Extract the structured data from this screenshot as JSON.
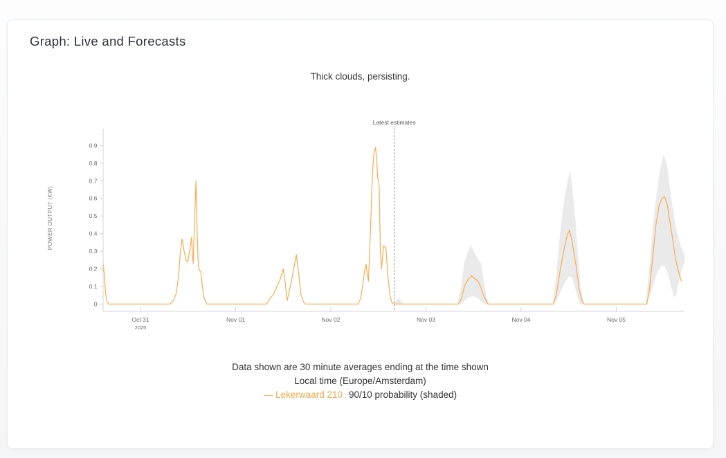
{
  "card": {
    "title": "Graph: Live and Forecasts"
  },
  "chart": {
    "subtitle": "Thick clouds, persisting."
  },
  "footer": {
    "line1": "Data shown are 30 minute averages ending at the time shown",
    "line2": "Local time (Europe/Amsterdam)",
    "legend_series_label": "— Lekerwaard 210",
    "legend_band_label": "90/10 probability (shaded)",
    "legend_series_color": "#f5a54a"
  },
  "chart_data": {
    "type": "line",
    "title": "Thick clouds, persisting.",
    "xlabel": "",
    "ylabel": "POWER OUTPUT (KW)",
    "x_unit": "hours since 2025-10-31 00:00 local (Europe/Amsterdam)",
    "x_range": [
      -9.4,
      137.3
    ],
    "ylim": [
      0,
      0.95
    ],
    "grid": false,
    "legend_position": "bottom",
    "y_ticks": [
      0,
      0.1,
      0.2,
      0.3,
      0.4,
      0.5,
      0.6,
      0.7,
      0.8,
      0.9
    ],
    "x_ticks": [
      {
        "t": 0,
        "label": "Oct 31",
        "sublabel": "2025"
      },
      {
        "t": 24,
        "label": "Nov 01"
      },
      {
        "t": 48,
        "label": "Nov 02"
      },
      {
        "t": 72,
        "label": "Nov 03"
      },
      {
        "t": 96,
        "label": "Nov 04"
      },
      {
        "t": 120,
        "label": "Nov 05"
      }
    ],
    "annotation": {
      "label": "Latest estimates",
      "t": 64.0,
      "style": "dashed-vertical"
    },
    "series": [
      {
        "name": "Lekerwaard 210",
        "color": "#f9ab4f",
        "points": [
          [
            -9.4,
            0.23
          ],
          [
            -9.1,
            0.16
          ],
          [
            -8.8,
            0.06
          ],
          [
            -8.4,
            0.01
          ],
          [
            -8.0,
            0
          ],
          [
            7.4,
            0
          ],
          [
            8.2,
            0.015
          ],
          [
            9.0,
            0.06
          ],
          [
            9.6,
            0.16
          ],
          [
            10.0,
            0.28
          ],
          [
            10.5,
            0.37
          ],
          [
            11.0,
            0.3
          ],
          [
            11.5,
            0.25
          ],
          [
            11.9,
            0.24
          ],
          [
            12.4,
            0.3
          ],
          [
            12.9,
            0.38
          ],
          [
            13.1,
            0.27
          ],
          [
            13.3,
            0.23
          ],
          [
            13.6,
            0.45
          ],
          [
            14.0,
            0.7
          ],
          [
            14.3,
            0.4
          ],
          [
            14.6,
            0.22
          ],
          [
            14.9,
            0.19
          ],
          [
            15.2,
            0.185
          ],
          [
            15.6,
            0.1
          ],
          [
            16.1,
            0.03
          ],
          [
            16.7,
            0
          ],
          [
            31.8,
            0
          ],
          [
            32.4,
            0.02
          ],
          [
            32.9,
            0.04
          ],
          [
            33.4,
            0.05
          ],
          [
            34.2,
            0.09
          ],
          [
            35.2,
            0.14
          ],
          [
            36.0,
            0.2
          ],
          [
            36.5,
            0.12
          ],
          [
            37.0,
            0.02
          ],
          [
            37.6,
            0.08
          ],
          [
            38.4,
            0.17
          ],
          [
            39.3,
            0.28
          ],
          [
            39.9,
            0.17
          ],
          [
            40.5,
            0.05
          ],
          [
            41.2,
            0.01
          ],
          [
            41.6,
            0
          ],
          [
            54.9,
            0
          ],
          [
            55.5,
            0.03
          ],
          [
            56.0,
            0.1
          ],
          [
            56.6,
            0.2
          ],
          [
            56.9,
            0.225
          ],
          [
            57.2,
            0.17
          ],
          [
            57.5,
            0.13
          ],
          [
            58.0,
            0.42
          ],
          [
            58.5,
            0.75
          ],
          [
            58.9,
            0.86
          ],
          [
            59.3,
            0.89
          ],
          [
            59.6,
            0.8
          ],
          [
            59.8,
            0.72
          ],
          [
            60.0,
            0.7
          ],
          [
            60.2,
            0.67
          ],
          [
            60.5,
            0.3
          ],
          [
            60.8,
            0.2
          ],
          [
            61.3,
            0.33
          ],
          [
            61.9,
            0.32
          ],
          [
            62.4,
            0.16
          ],
          [
            62.9,
            0.05
          ],
          [
            63.4,
            0.01
          ],
          [
            64.0,
            0
          ],
          [
            80.2,
            0
          ],
          [
            80.9,
            0.03
          ],
          [
            81.7,
            0.1
          ],
          [
            82.6,
            0.14
          ],
          [
            83.5,
            0.16
          ],
          [
            84.3,
            0.145
          ],
          [
            85.1,
            0.13
          ],
          [
            85.9,
            0.09
          ],
          [
            86.7,
            0.04
          ],
          [
            87.6,
            0
          ],
          [
            104.2,
            0
          ],
          [
            105.0,
            0.07
          ],
          [
            105.9,
            0.2
          ],
          [
            106.8,
            0.31
          ],
          [
            107.6,
            0.39
          ],
          [
            108.2,
            0.42
          ],
          [
            108.7,
            0.37
          ],
          [
            109.1,
            0.32
          ],
          [
            109.9,
            0.21
          ],
          [
            110.6,
            0.09
          ],
          [
            111.3,
            0.02
          ],
          [
            111.8,
            0
          ],
          [
            127.7,
            0
          ],
          [
            128.4,
            0.09
          ],
          [
            129.2,
            0.27
          ],
          [
            130.0,
            0.45
          ],
          [
            130.8,
            0.56
          ],
          [
            131.5,
            0.6
          ],
          [
            132.2,
            0.61
          ],
          [
            132.9,
            0.56
          ],
          [
            133.5,
            0.47
          ],
          [
            134.2,
            0.37
          ],
          [
            134.9,
            0.26
          ],
          [
            135.6,
            0.19
          ],
          [
            136.4,
            0.13
          ]
        ]
      }
    ],
    "band": {
      "name": "90/10 probability",
      "color": "#eaeaea",
      "upper": [
        [
          64.0,
          0
        ],
        [
          64.4,
          0.02
        ],
        [
          65.0,
          0.035
        ],
        [
          65.8,
          0.02
        ],
        [
          66.4,
          0
        ],
        [
          79.9,
          0
        ],
        [
          80.9,
          0.1
        ],
        [
          81.7,
          0.24
        ],
        [
          82.6,
          0.3
        ],
        [
          83.3,
          0.335
        ],
        [
          84.1,
          0.3
        ],
        [
          85.0,
          0.26
        ],
        [
          85.9,
          0.23
        ],
        [
          86.6,
          0.13
        ],
        [
          87.3,
          0.04
        ],
        [
          88.0,
          0
        ],
        [
          103.9,
          0
        ],
        [
          104.9,
          0.18
        ],
        [
          105.9,
          0.42
        ],
        [
          106.9,
          0.6
        ],
        [
          107.8,
          0.71
        ],
        [
          108.4,
          0.755
        ],
        [
          108.9,
          0.66
        ],
        [
          109.6,
          0.5
        ],
        [
          110.3,
          0.29
        ],
        [
          111.0,
          0.09
        ],
        [
          111.9,
          0
        ],
        [
          127.4,
          0
        ],
        [
          128.4,
          0.22
        ],
        [
          129.3,
          0.46
        ],
        [
          130.2,
          0.63
        ],
        [
          131.0,
          0.76
        ],
        [
          131.9,
          0.85
        ],
        [
          132.7,
          0.8
        ],
        [
          133.4,
          0.68
        ],
        [
          134.2,
          0.55
        ],
        [
          135.0,
          0.44
        ],
        [
          135.8,
          0.36
        ],
        [
          136.6,
          0.31
        ],
        [
          137.3,
          0.27
        ]
      ],
      "lower": [
        [
          64.0,
          0
        ],
        [
          66.4,
          0
        ],
        [
          79.9,
          0
        ],
        [
          81.0,
          0.005
        ],
        [
          82.0,
          0.025
        ],
        [
          83.0,
          0.04
        ],
        [
          84.0,
          0.045
        ],
        [
          85.0,
          0.035
        ],
        [
          85.9,
          0.015
        ],
        [
          86.6,
          0
        ],
        [
          103.9,
          0
        ],
        [
          105.0,
          0.02
        ],
        [
          106.0,
          0.07
        ],
        [
          107.0,
          0.12
        ],
        [
          108.0,
          0.155
        ],
        [
          108.8,
          0.155
        ],
        [
          109.5,
          0.1
        ],
        [
          110.2,
          0.04
        ],
        [
          110.8,
          0
        ],
        [
          127.4,
          0
        ],
        [
          128.6,
          0.05
        ],
        [
          129.6,
          0.13
        ],
        [
          130.6,
          0.19
        ],
        [
          131.5,
          0.22
        ],
        [
          132.3,
          0.21
        ],
        [
          133.0,
          0.17
        ],
        [
          133.8,
          0.1
        ],
        [
          134.5,
          0.04
        ],
        [
          135.1,
          0.05
        ],
        [
          135.8,
          0.13
        ],
        [
          136.6,
          0.2
        ],
        [
          137.3,
          0.24
        ]
      ]
    }
  }
}
